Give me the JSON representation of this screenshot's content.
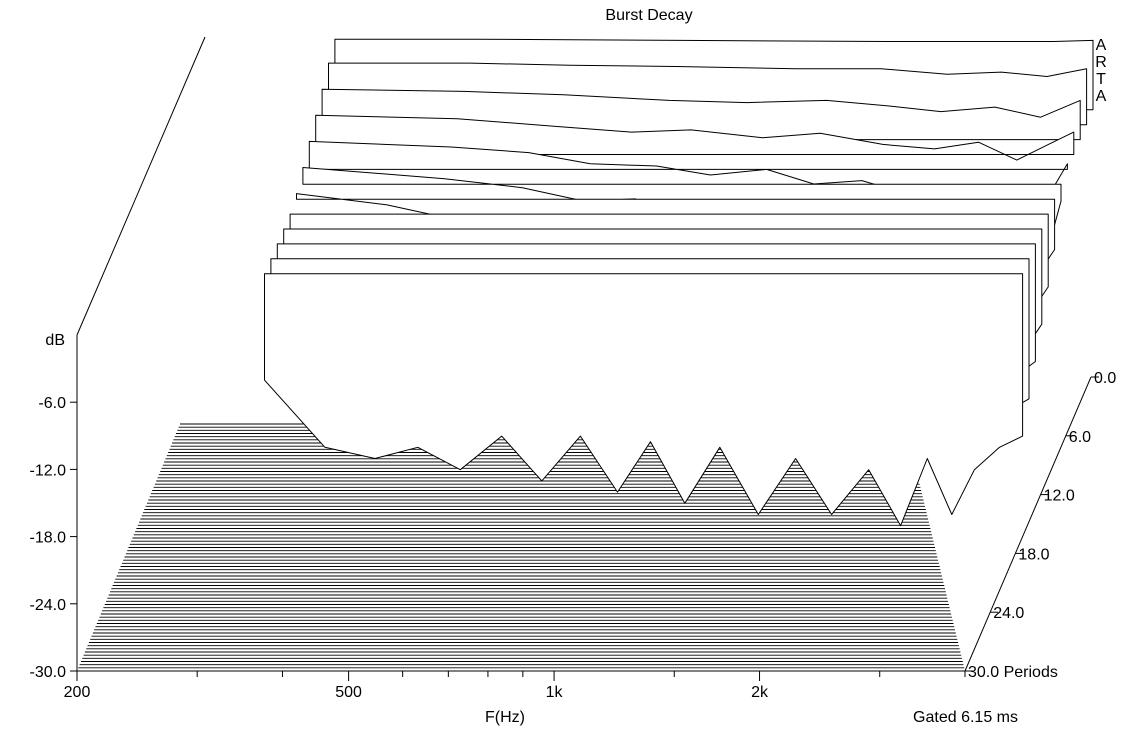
{
  "chart_data": {
    "type": "waterfall",
    "title": "Burst Decay",
    "xlabel": "F(Hz)",
    "ylabel": "dB",
    "zlabel_suffix": "Periods",
    "watermark": "ARTA",
    "gating_note": "Gated 6.15 ms",
    "x_scale": "log",
    "xlim": [
      200,
      4000
    ],
    "x_ticks": [
      {
        "value": 200,
        "label": "200"
      },
      {
        "value": 500,
        "label": "500"
      },
      {
        "value": 1000,
        "label": "1k"
      },
      {
        "value": 2000,
        "label": "2k"
      }
    ],
    "ylim": [
      -30,
      0
    ],
    "y_ticks": [
      {
        "value": -6,
        "label": "-6.0"
      },
      {
        "value": -12,
        "label": "-12.0"
      },
      {
        "value": -18,
        "label": "-18.0"
      },
      {
        "value": -24,
        "label": "-24.0"
      },
      {
        "value": -30,
        "label": "-30.0"
      }
    ],
    "zlim": [
      0,
      30
    ],
    "z_ticks": [
      {
        "value": 0,
        "label": "0.0"
      },
      {
        "value": 6,
        "label": "6.0"
      },
      {
        "value": 12,
        "label": "12.0"
      },
      {
        "value": 18,
        "label": "18.0"
      },
      {
        "value": 24,
        "label": "24.0"
      },
      {
        "value": 30,
        "label": "30.0 Periods"
      }
    ],
    "series": [
      {
        "periods": 0,
        "points": [
          [
            310,
            -0.2
          ],
          [
            500,
            -0.2
          ],
          [
            1000,
            -0.3
          ],
          [
            2000,
            -0.4
          ],
          [
            3500,
            -0.4
          ],
          [
            4000,
            -0.3
          ]
        ]
      },
      {
        "periods": 1.5,
        "points": [
          [
            310,
            -1
          ],
          [
            500,
            -1
          ],
          [
            700,
            -1.2
          ],
          [
            1000,
            -1.3
          ],
          [
            1500,
            -1.5
          ],
          [
            2000,
            -1.5
          ],
          [
            2500,
            -2
          ],
          [
            3000,
            -1.8
          ],
          [
            3500,
            -2.2
          ],
          [
            4000,
            -1.5
          ]
        ]
      },
      {
        "periods": 3,
        "points": [
          [
            310,
            -2
          ],
          [
            500,
            -2.2
          ],
          [
            700,
            -2.5
          ],
          [
            1000,
            -3
          ],
          [
            1300,
            -3.2
          ],
          [
            1700,
            -3
          ],
          [
            2100,
            -3.5
          ],
          [
            2500,
            -4
          ],
          [
            3000,
            -3.6
          ],
          [
            3500,
            -4.5
          ],
          [
            4000,
            -3
          ]
        ]
      },
      {
        "periods": 4.5,
        "points": [
          [
            310,
            -3
          ],
          [
            500,
            -3.3
          ],
          [
            700,
            -4
          ],
          [
            900,
            -4.5
          ],
          [
            1100,
            -4.3
          ],
          [
            1400,
            -5
          ],
          [
            1700,
            -4.6
          ],
          [
            2100,
            -5.6
          ],
          [
            2500,
            -6
          ],
          [
            2900,
            -5.4
          ],
          [
            3300,
            -7
          ],
          [
            3700,
            -5.5
          ],
          [
            4000,
            -4.5
          ]
        ]
      },
      {
        "periods": 6,
        "points": [
          [
            310,
            -4
          ],
          [
            500,
            -4.5
          ],
          [
            650,
            -5
          ],
          [
            800,
            -6
          ],
          [
            1000,
            -6.2
          ],
          [
            1200,
            -7
          ],
          [
            1450,
            -6.5
          ],
          [
            1700,
            -7.8
          ],
          [
            2000,
            -7.5
          ],
          [
            2300,
            -8.6
          ],
          [
            2700,
            -8
          ],
          [
            3000,
            -10
          ],
          [
            3400,
            -8
          ],
          [
            3700,
            -9.5
          ],
          [
            4000,
            -6
          ]
        ]
      },
      {
        "periods": 7.5,
        "points": [
          [
            310,
            -5
          ],
          [
            500,
            -6
          ],
          [
            650,
            -6.8
          ],
          [
            800,
            -8
          ],
          [
            950,
            -7.8
          ],
          [
            1100,
            -9
          ],
          [
            1300,
            -8.5
          ],
          [
            1500,
            -10
          ],
          [
            1700,
            -9.4
          ],
          [
            1950,
            -11
          ],
          [
            2250,
            -10.5
          ],
          [
            2550,
            -12
          ],
          [
            2900,
            -11
          ],
          [
            3200,
            -14
          ],
          [
            3500,
            -10
          ],
          [
            3800,
            -13
          ],
          [
            4000,
            -8
          ]
        ]
      },
      {
        "periods": 9,
        "points": [
          [
            310,
            -6
          ],
          [
            420,
            -7
          ],
          [
            500,
            -8
          ],
          [
            620,
            -9
          ],
          [
            750,
            -10
          ],
          [
            880,
            -9.5
          ],
          [
            1000,
            -11
          ],
          [
            1150,
            -10.5
          ],
          [
            1300,
            -12
          ],
          [
            1450,
            -11.5
          ],
          [
            1600,
            -13
          ],
          [
            1800,
            -12.5
          ],
          [
            2000,
            -14
          ],
          [
            2250,
            -13
          ],
          [
            2500,
            -15
          ],
          [
            2800,
            -14
          ],
          [
            3050,
            -17
          ],
          [
            3300,
            -14.5
          ],
          [
            3500,
            -16
          ],
          [
            3800,
            -13
          ],
          [
            4000,
            -11
          ]
        ]
      },
      {
        "periods": 10.5,
        "points": [
          [
            310,
            -8
          ],
          [
            420,
            -10
          ],
          [
            500,
            -11
          ],
          [
            620,
            -11.5
          ],
          [
            750,
            -12.5
          ],
          [
            860,
            -12
          ],
          [
            980,
            -14
          ],
          [
            1100,
            -13
          ],
          [
            1250,
            -15
          ],
          [
            1400,
            -14
          ],
          [
            1550,
            -16
          ],
          [
            1750,
            -15
          ],
          [
            1950,
            -17
          ],
          [
            2200,
            -16
          ],
          [
            2450,
            -18
          ],
          [
            2750,
            -17
          ],
          [
            3000,
            -20
          ],
          [
            3250,
            -16
          ],
          [
            3500,
            -19
          ],
          [
            3800,
            -15
          ],
          [
            4000,
            -13
          ]
        ]
      },
      {
        "periods": 12,
        "points": [
          [
            310,
            -10
          ],
          [
            400,
            -13
          ],
          [
            480,
            -14
          ],
          [
            580,
            -14.5
          ],
          [
            700,
            -14
          ],
          [
            800,
            -15
          ],
          [
            900,
            -14.5
          ],
          [
            1000,
            -17
          ],
          [
            1120,
            -15.5
          ],
          [
            1250,
            -18
          ],
          [
            1400,
            -16.5
          ],
          [
            1550,
            -19
          ],
          [
            1750,
            -17.5
          ],
          [
            1950,
            -20
          ],
          [
            2200,
            -18
          ],
          [
            2450,
            -21
          ],
          [
            2750,
            -19
          ],
          [
            3000,
            -23
          ],
          [
            3250,
            -18
          ],
          [
            3500,
            -22
          ],
          [
            3800,
            -17
          ],
          [
            4000,
            -15
          ]
        ]
      },
      {
        "periods": 13.5,
        "points": [
          [
            310,
            -12
          ],
          [
            400,
            -16
          ],
          [
            470,
            -17
          ],
          [
            560,
            -16.5
          ],
          [
            650,
            -18
          ],
          [
            760,
            -16.5
          ],
          [
            870,
            -19
          ],
          [
            980,
            -17
          ],
          [
            1100,
            -20
          ],
          [
            1230,
            -18
          ],
          [
            1370,
            -21
          ],
          [
            1530,
            -19
          ],
          [
            1720,
            -22
          ],
          [
            1930,
            -20
          ],
          [
            2180,
            -23
          ],
          [
            2450,
            -21
          ],
          [
            2750,
            -24
          ],
          [
            3000,
            -20
          ],
          [
            3250,
            -24
          ],
          [
            3500,
            -21
          ],
          [
            3800,
            -18
          ],
          [
            4000,
            -17
          ]
        ]
      },
      {
        "periods": 15,
        "points": [
          [
            310,
            -14
          ],
          [
            390,
            -19
          ],
          [
            460,
            -20
          ],
          [
            540,
            -19
          ],
          [
            620,
            -21
          ],
          [
            720,
            -18.5
          ],
          [
            830,
            -22
          ],
          [
            940,
            -19
          ],
          [
            1060,
            -23
          ],
          [
            1180,
            -19.5
          ],
          [
            1320,
            -24
          ],
          [
            1480,
            -20
          ],
          [
            1680,
            -25
          ],
          [
            1900,
            -21
          ],
          [
            2150,
            -26
          ],
          [
            2420,
            -22
          ],
          [
            2700,
            -27
          ],
          [
            2950,
            -22
          ],
          [
            3200,
            -26
          ],
          [
            3450,
            -22
          ],
          [
            3750,
            -20
          ],
          [
            4000,
            -19
          ]
        ]
      },
      {
        "periods": 16.5,
        "points": [
          [
            310,
            -16
          ],
          [
            380,
            -22
          ],
          [
            450,
            -23
          ],
          [
            520,
            -22
          ],
          [
            600,
            -24
          ],
          [
            690,
            -21
          ],
          [
            790,
            -25
          ],
          [
            900,
            -21
          ],
          [
            1020,
            -26
          ],
          [
            1140,
            -21.5
          ],
          [
            1280,
            -27
          ],
          [
            1440,
            -22
          ],
          [
            1640,
            -28
          ],
          [
            1860,
            -23
          ],
          [
            2100,
            -28
          ],
          [
            2380,
            -24
          ],
          [
            2650,
            -29
          ],
          [
            2900,
            -23
          ],
          [
            3150,
            -28
          ],
          [
            3400,
            -24
          ],
          [
            3700,
            -22
          ],
          [
            4000,
            -21
          ]
        ]
      }
    ]
  }
}
